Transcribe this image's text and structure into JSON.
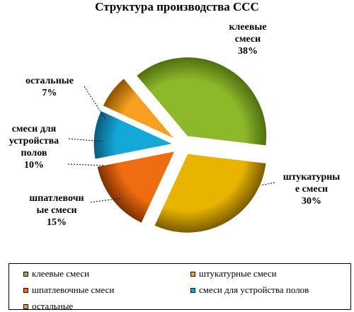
{
  "chart_data": {
    "type": "pie",
    "title": "Структура производства ССС",
    "slices": [
      {
        "name": "клеевые смеси",
        "label_lines": [
          "клеевые",
          "смеси"
        ],
        "value": 38,
        "value_label": "38%",
        "color": "#8cb82a",
        "dark": "#4f6e10"
      },
      {
        "name": "штукатурные смеси",
        "label_lines": [
          "штукатурны",
          "е смеси"
        ],
        "value": 30,
        "value_label": "30%",
        "color": "#e8b400",
        "dark": "#7a5a00"
      },
      {
        "name": "шпатлевочные смеси",
        "label_lines": [
          "шпатлевочн",
          "ые смеси"
        ],
        "value": 15,
        "value_label": "15%",
        "color": "#f06c10",
        "dark": "#7a3000"
      },
      {
        "name": "смеси для устройства полов",
        "label_lines": [
          "смеси для",
          "устройства",
          "полов"
        ],
        "value": 10,
        "value_label": "10%",
        "color": "#14a8d8",
        "dark": "#0a5a78"
      },
      {
        "name": "остальные",
        "label_lines": [
          "остальные"
        ],
        "value": 7,
        "value_label": "7%",
        "color": "#f5a020",
        "dark": "#8a5200"
      }
    ],
    "legend": {
      "placement": "bottom",
      "entries": [
        "клеевые смеси",
        "штукатурные смеси",
        "шпатлевочные смеси",
        "смеси для устройства полов",
        "остальные"
      ]
    }
  }
}
